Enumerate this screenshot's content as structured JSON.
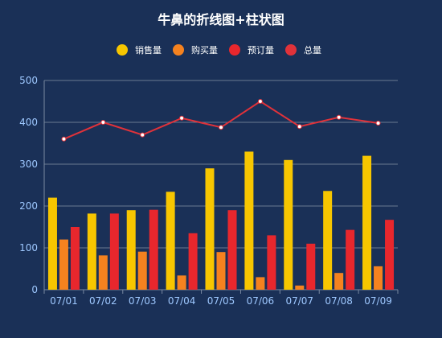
{
  "chart_data": {
    "type": "bar",
    "title": "牛鼻的折线图+柱状图",
    "categories": [
      "07/01",
      "07/02",
      "07/03",
      "07/04",
      "07/05",
      "07/06",
      "07/07",
      "07/08",
      "07/09"
    ],
    "series": [
      {
        "name": "销售量",
        "type": "bar",
        "color": "#f7c600",
        "values": [
          220,
          182,
          190,
          234,
          290,
          330,
          310,
          236,
          320
        ]
      },
      {
        "name": "购买量",
        "type": "bar",
        "color": "#f5821f",
        "values": [
          120,
          82,
          91,
          34,
          90,
          30,
          10,
          40,
          56
        ]
      },
      {
        "name": "预订量",
        "type": "bar",
        "color": "#e8272d",
        "values": [
          150,
          182,
          191,
          135,
          190,
          130,
          110,
          143,
          167
        ]
      },
      {
        "name": "总量",
        "type": "line",
        "color": "#e0323a",
        "values": [
          360,
          400,
          370,
          410,
          388,
          450,
          390,
          412,
          398
        ]
      }
    ],
    "yticks": [
      0,
      100,
      200,
      300,
      400,
      500
    ],
    "ylim": [
      0,
      500
    ],
    "grid": true,
    "legend_position": "top-center"
  }
}
